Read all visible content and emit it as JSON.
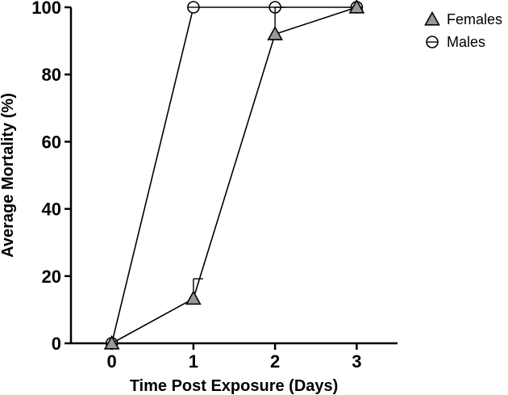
{
  "chart_data": {
    "type": "line",
    "title": "",
    "xlabel": "Time Post Exposure (Days)",
    "ylabel": "Average Mortality (%)",
    "x": [
      0,
      1,
      2,
      3
    ],
    "x_ticks": [
      "0",
      "1",
      "2",
      "3"
    ],
    "xlim": [
      -0.5,
      3.5
    ],
    "ylim": [
      0,
      100
    ],
    "y_ticks": [
      "0",
      "20",
      "40",
      "60",
      "80",
      "100"
    ],
    "grid": false,
    "legend_position": "top-right",
    "series": [
      {
        "name": "Females",
        "marker": "triangle",
        "marker_fill": "#999999",
        "values": [
          0,
          13.3,
          92,
          100
        ],
        "error_upper": [
          0,
          19.2,
          100,
          100
        ]
      },
      {
        "name": "Males",
        "marker": "circle-line",
        "marker_fill": "#ffffff",
        "values": [
          0,
          100,
          100,
          100
        ]
      }
    ],
    "colors": {
      "line": "#000000",
      "female_fill": "#999999",
      "male_fill": "#ffffff"
    }
  }
}
